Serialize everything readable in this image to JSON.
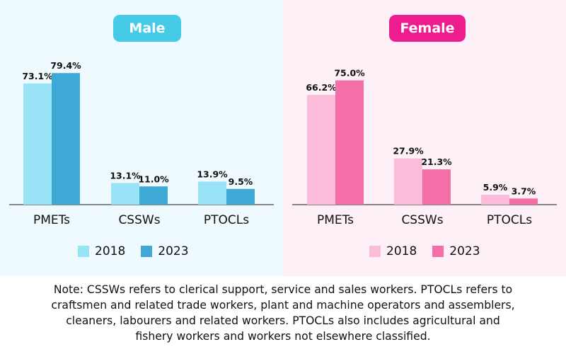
{
  "colors": {
    "male_2018": "#99e3f7",
    "male_2023": "#3fa9d6",
    "female_2018": "#fcbbd9",
    "female_2023": "#f46fa7",
    "male_badge": "#45cbe8",
    "female_badge": "#ee1d8f"
  },
  "chart_data": [
    {
      "type": "bar",
      "title": "Male",
      "categories": [
        "PMETs",
        "CSSWs",
        "PTOCLs"
      ],
      "series": [
        {
          "name": "2018",
          "values": [
            73.1,
            13.1,
            13.9
          ],
          "labels": [
            "73.1%",
            "13.1%",
            "13.9%"
          ]
        },
        {
          "name": "2023",
          "values": [
            79.4,
            11.0,
            9.5
          ],
          "labels": [
            "79.4%",
            "11.0%",
            "9.5%"
          ]
        }
      ],
      "ylim": [
        0,
        100
      ],
      "grid": false,
      "legend": "bottom"
    },
    {
      "type": "bar",
      "title": "Female",
      "categories": [
        "PMETs",
        "CSSWs",
        "PTOCLs"
      ],
      "series": [
        {
          "name": "2018",
          "values": [
            66.2,
            27.9,
            5.9
          ],
          "labels": [
            "66.2%",
            "27.9%",
            "5.9%"
          ]
        },
        {
          "name": "2023",
          "values": [
            75.0,
            21.3,
            3.7
          ],
          "labels": [
            "75.0%",
            "21.3%",
            "3.7%"
          ]
        }
      ],
      "ylim": [
        0,
        100
      ],
      "grid": false,
      "legend": "bottom"
    }
  ],
  "note": {
    "lines": [
      "Note:   CSSWs refers to clerical support, service and sales workers. PTOCLs refers to",
      "craftsmen and related trade workers, plant and machine operators and assemblers,",
      "cleaners, labourers and related workers. PTOCLs also includes agricultural and",
      "fishery workers and workers not elsewhere classified."
    ]
  }
}
